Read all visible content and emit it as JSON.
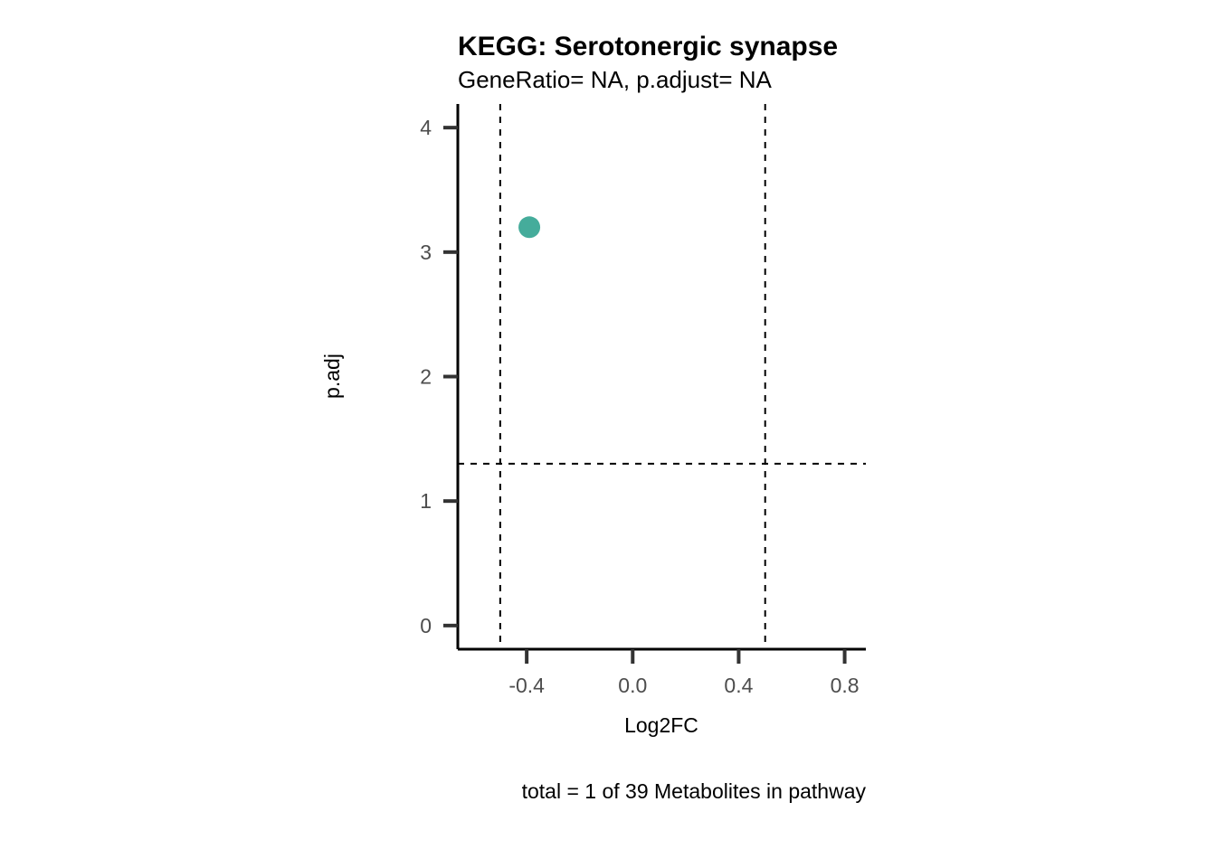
{
  "chart_data": {
    "type": "scatter",
    "title": "KEGG: Serotonergic synapse",
    "subtitle": "GeneRatio= NA, p.adjust= NA",
    "xlabel": "Log2FC",
    "ylabel": "p.adj",
    "caption": "total = 1 of 39 Metabolites in pathway",
    "xlim": [
      -0.66,
      0.88
    ],
    "ylim": [
      -0.19,
      4.19
    ],
    "x_ticks": [
      -0.4,
      0.0,
      0.4,
      0.8
    ],
    "x_tick_labels": [
      "-0.4",
      "0.0",
      "0.4",
      "0.8"
    ],
    "y_ticks": [
      0,
      1,
      2,
      3,
      4
    ],
    "y_tick_labels": [
      "0",
      "1",
      "2",
      "3",
      "4"
    ],
    "points": [
      {
        "x": -0.39,
        "y": 3.2,
        "color": "#45AC9B"
      }
    ],
    "reference_lines": {
      "vertical": [
        -0.5,
        0.5
      ],
      "horizontal": [
        1.3
      ],
      "style": "dashed"
    },
    "grid": false,
    "legend": "none"
  }
}
